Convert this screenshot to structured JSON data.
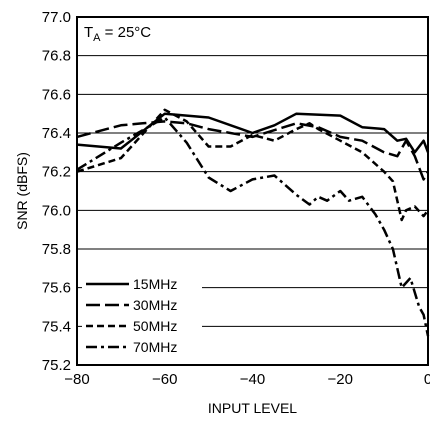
{
  "chart_data": {
    "type": "line",
    "xlabel": "INPUT LEVEL",
    "ylabel": "SNR (dBFS)",
    "xlim": [
      -80,
      0
    ],
    "ylim": [
      75.2,
      77.0
    ],
    "x_ticks": [
      -80,
      -60,
      -40,
      -20,
      0
    ],
    "x_tick_labels": [
      "−80",
      "−60",
      "−40",
      "−20",
      "0"
    ],
    "y_ticks": [
      75.2,
      75.4,
      75.6,
      75.8,
      76.0,
      76.2,
      76.4,
      76.6,
      76.8,
      77.0
    ],
    "y_tick_labels": [
      "75.2",
      "75.4",
      "75.6",
      "75.8",
      "76.0",
      "76.2",
      "76.4",
      "76.6",
      "76.8",
      "77.0"
    ],
    "grid": "horizontal",
    "annotation": {
      "main": "T",
      "sub": "A",
      "rest": " = 25°C"
    },
    "legend_position": "bottom-left",
    "series": [
      {
        "name": "15MHz",
        "style": "solid",
        "x": [
          -80,
          -70,
          -60,
          -50,
          -40,
          -35,
          -30,
          -20,
          -15,
          -10,
          -7,
          -5,
          -3,
          -1,
          0
        ],
        "y": [
          76.34,
          76.32,
          76.5,
          76.48,
          76.4,
          76.44,
          76.5,
          76.49,
          76.43,
          76.42,
          76.36,
          76.37,
          76.3,
          76.36,
          76.3
        ]
      },
      {
        "name": "30MHz",
        "style": "long-dash",
        "x": [
          -80,
          -70,
          -65,
          -60,
          -55,
          -50,
          -40,
          -30,
          -25,
          -20,
          -15,
          -10,
          -7,
          -5,
          -3,
          -1,
          0
        ],
        "y": [
          76.38,
          76.44,
          76.45,
          76.46,
          76.45,
          76.42,
          76.38,
          76.45,
          76.43,
          76.38,
          76.36,
          76.3,
          76.28,
          76.36,
          76.28,
          76.16,
          76.2
        ]
      },
      {
        "name": "50MHz",
        "style": "short-dash",
        "x": [
          -80,
          -70,
          -60,
          -55,
          -50,
          -45,
          -40,
          -35,
          -30,
          -27,
          -25,
          -20,
          -15,
          -10,
          -8,
          -6,
          -5,
          -3,
          -1,
          0
        ],
        "y": [
          76.2,
          76.27,
          76.52,
          76.46,
          76.33,
          76.33,
          76.39,
          76.36,
          76.42,
          76.45,
          76.42,
          76.36,
          76.3,
          76.2,
          76.15,
          75.95,
          76.0,
          76.02,
          75.97,
          76.0
        ]
      },
      {
        "name": "70MHz",
        "style": "dash-dot",
        "x": [
          -80,
          -70,
          -60,
          -55,
          -50,
          -45,
          -40,
          -35,
          -30,
          -27,
          -25,
          -23,
          -20,
          -18,
          -15,
          -12,
          -10,
          -8,
          -6,
          -4,
          -2,
          -1,
          0
        ],
        "y": [
          76.21,
          76.35,
          76.48,
          76.35,
          76.17,
          76.1,
          76.16,
          76.18,
          76.08,
          76.03,
          76.07,
          76.05,
          76.1,
          76.05,
          76.07,
          75.98,
          75.9,
          75.8,
          75.6,
          75.65,
          75.5,
          75.46,
          75.35
        ]
      }
    ]
  }
}
